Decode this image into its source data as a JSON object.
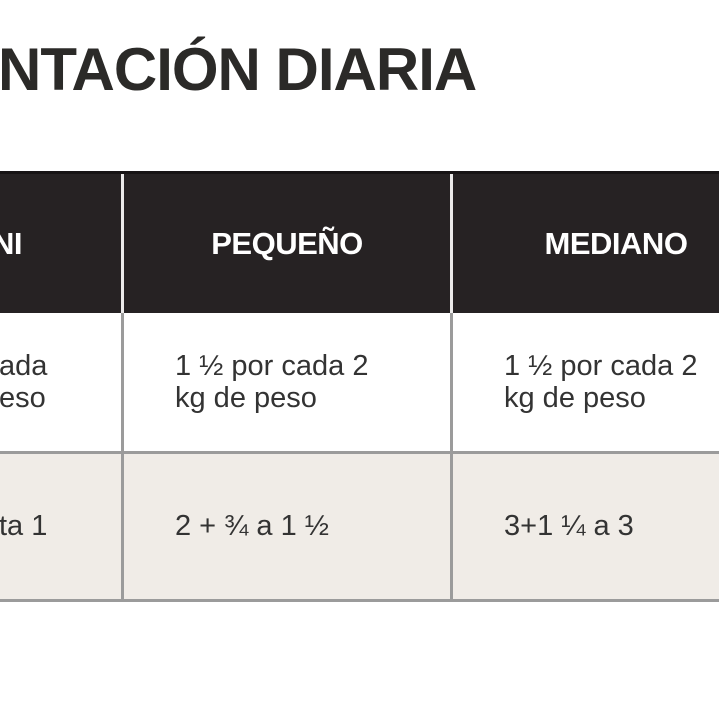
{
  "page": {
    "title_fragment": "NTACIÓN DIARIA"
  },
  "table": {
    "headers": [
      "NI",
      "PEQUEÑO",
      "MEDIANO"
    ],
    "rows": [
      {
        "col1_lines": [
          "ada",
          "eso"
        ],
        "col2_lines": [
          "1 ½ por cada 2",
          "kg de peso"
        ],
        "col3_lines": [
          "1 ½ por cada 2",
          "kg de peso"
        ]
      },
      {
        "col1_lines": [
          "ta 1"
        ],
        "col2_lines": [
          "2 + ¾ a 1 ½"
        ],
        "col3_lines": [
          "3+1 ¼ a 3"
        ]
      }
    ]
  },
  "colors": {
    "header_bg": "#262223",
    "header_text": "#ffffff",
    "row_alt_bg": "#f0ece7",
    "border_gray": "#9b9b9b",
    "header_divider": "#eceaea",
    "title_text": "#2b2a28",
    "body_text": "#333333"
  },
  "chart_data": {
    "type": "table",
    "title": "NTACIÓN DIARIA",
    "columns": [
      "NI",
      "PEQUEÑO",
      "MEDIANO"
    ],
    "rows": [
      [
        "ada / eso",
        "1 ½ por cada 2 kg de peso",
        "1 ½ por cada 2 kg de peso"
      ],
      [
        "ta 1",
        "2 + ¾ a 1 ½",
        "3+1 ¼ a 3"
      ]
    ]
  }
}
